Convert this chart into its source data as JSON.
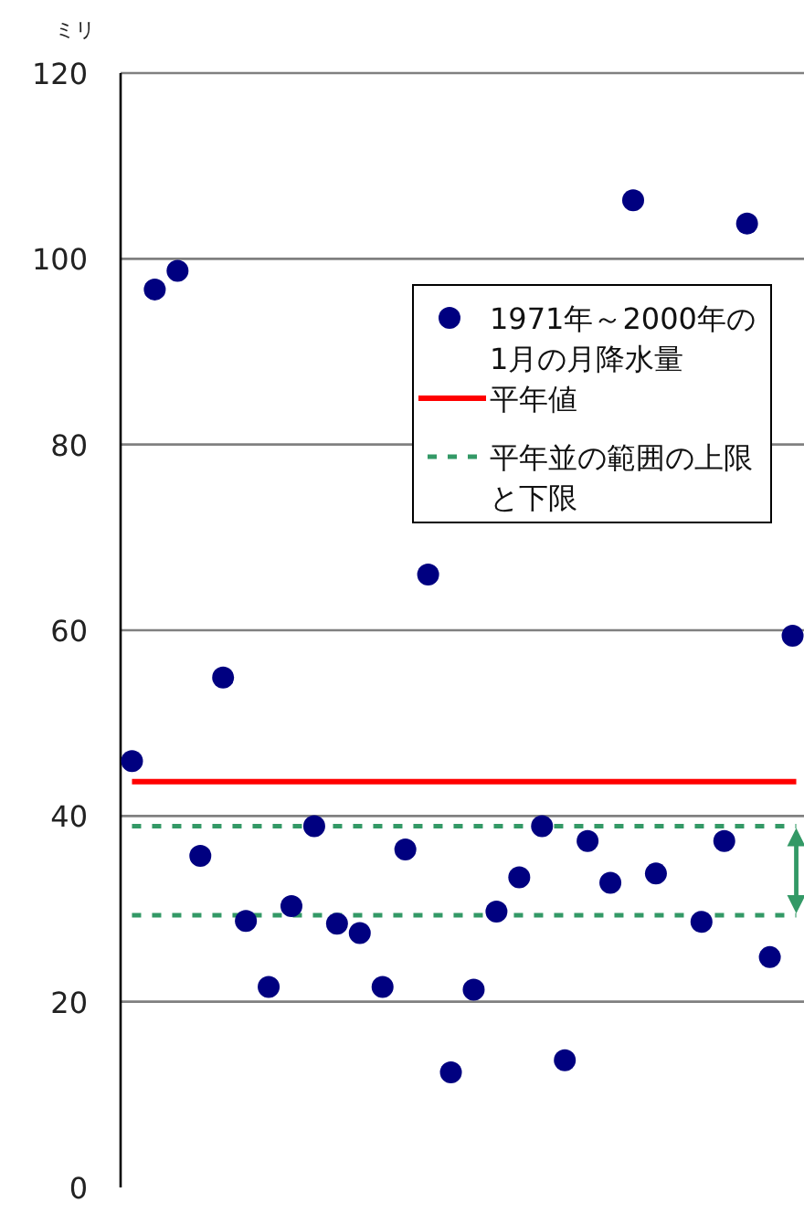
{
  "chart_data": {
    "type": "scatter",
    "ylabel": "ミリ",
    "categories": [
      null,
      null,
      null,
      null,
      null,
      null,
      null,
      null,
      null,
      null,
      null,
      null,
      null,
      null,
      null,
      null,
      null,
      null,
      null,
      null,
      null,
      null,
      null,
      null,
      null,
      null,
      null,
      null,
      null,
      null
    ],
    "series": [
      {
        "name": "1971年～2000年の1月の月降水量",
        "color": "#000080",
        "values": [
          45.9,
          96.7,
          98.7,
          35.7,
          54.9,
          28.7,
          21.6,
          30.3,
          38.9,
          28.4,
          27.4,
          21.6,
          36.4,
          66,
          12.4,
          21.3,
          29.7,
          33.4,
          38.9,
          13.7,
          37.3,
          32.8,
          106.3,
          33.8,
          null,
          28.6,
          37.3,
          103.8,
          24.8,
          59.4
        ]
      }
    ],
    "ylim": [
      0,
      120
    ],
    "yticks": [
      0,
      20,
      40,
      60,
      80,
      100,
      120
    ],
    "grid": "y",
    "legend": "right",
    "marker": "circle",
    "ref_lines": [
      {
        "axis": "y",
        "value": 43.7,
        "label": "平年値",
        "color": "#ff0000",
        "line_style": "solid"
      },
      {
        "axis": "y",
        "value": 38.9,
        "label": "平年並の範囲の上限と下限",
        "color": "#339966",
        "line_style": "dashed"
      },
      {
        "axis": "y",
        "value": 29.3,
        "color": "#339966",
        "line_style": "dashed"
      }
    ]
  }
}
